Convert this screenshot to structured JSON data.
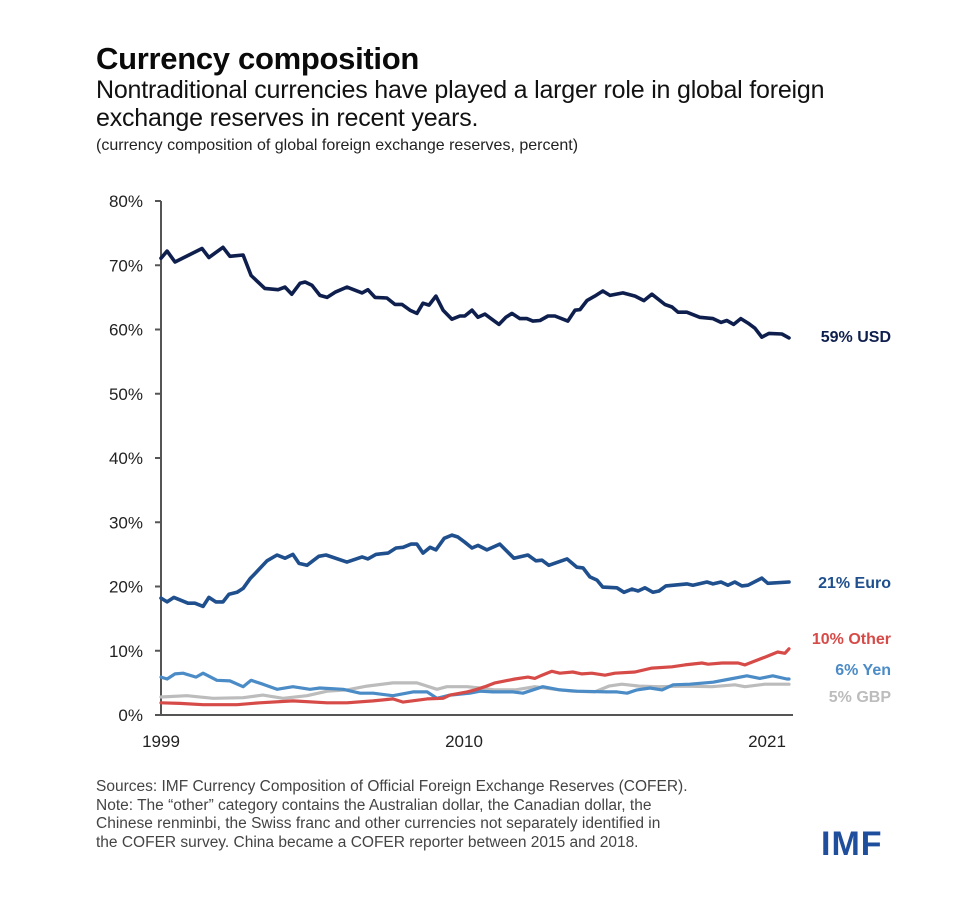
{
  "header": {
    "title": "Currency composition",
    "subtitle": "Nontraditional currencies have played a larger role in global foreign exchange reserves in recent years.",
    "units_note": "(currency composition of global foreign exchange reserves, percent)"
  },
  "footer": {
    "lines": [
      "Sources: IMF Currency Composition of Official Foreign Exchange Reserves (COFER).",
      "Note: The “other” category contains the Australian dollar, the Canadian dollar, the",
      "Chinese renminbi, the Swiss franc and other currencies not separately identified in",
      "the COFER survey. China became a COFER reporter between 2015 and 2018."
    ],
    "logo": "IMF"
  },
  "colors": {
    "usd": "#0f1f4d",
    "euro": "#1f4f8d",
    "other": "#d64b48",
    "yen": "#4b8bc6",
    "gbp": "#bcbcbc",
    "logo": "#1f4e9c",
    "axis": "#555555"
  },
  "chart_data": {
    "type": "line",
    "title": "Currency composition",
    "subtitle": "Nontraditional currencies have played a larger role in global foreign exchange reserves in recent years.",
    "xlabel": "",
    "ylabel": "(currency composition of global foreign exchange reserves, percent)",
    "xlim": [
      1999,
      2021.85
    ],
    "ylim": [
      0,
      80
    ],
    "x_ticks": [
      1999,
      2010,
      2021
    ],
    "x_tick_labels": [
      "1999",
      "2010",
      "2021"
    ],
    "y_ticks": [
      0,
      10,
      20,
      30,
      40,
      50,
      60,
      70,
      80
    ],
    "y_tick_labels": [
      "0%",
      "10%",
      "20%",
      "30%",
      "40%",
      "50%",
      "60%",
      "70%",
      "80%"
    ],
    "grid": false,
    "legend": "end-of-line labels (right)",
    "series": [
      {
        "name": "USD",
        "end_label": "59% USD",
        "color_key": "usd",
        "points": [
          [
            1999.0,
            71.1
          ],
          [
            1999.22,
            72.2
          ],
          [
            1999.51,
            70.5
          ],
          [
            2000.49,
            72.6
          ],
          [
            2000.74,
            71.2
          ],
          [
            2001.25,
            72.8
          ],
          [
            2001.5,
            71.4
          ],
          [
            2001.98,
            71.6
          ],
          [
            2002.27,
            68.4
          ],
          [
            2002.77,
            66.4
          ],
          [
            2003.25,
            66.2
          ],
          [
            2003.5,
            66.6
          ],
          [
            2003.75,
            65.5
          ],
          [
            2004.05,
            67.2
          ],
          [
            2004.23,
            67.4
          ],
          [
            2004.48,
            66.9
          ],
          [
            2004.77,
            65.3
          ],
          [
            2005.03,
            65.0
          ],
          [
            2005.32,
            65.8
          ],
          [
            2005.75,
            66.6
          ],
          [
            2006.3,
            65.7
          ],
          [
            2006.51,
            66.2
          ],
          [
            2006.77,
            65.0
          ],
          [
            2007.2,
            64.9
          ],
          [
            2007.49,
            63.9
          ],
          [
            2007.75,
            63.9
          ],
          [
            2008.04,
            63.0
          ],
          [
            2008.29,
            62.5
          ],
          [
            2008.51,
            64.1
          ],
          [
            2008.73,
            63.8
          ],
          [
            2008.98,
            65.2
          ],
          [
            2009.24,
            63.0
          ],
          [
            2009.56,
            61.6
          ],
          [
            2009.85,
            62.1
          ],
          [
            2010.03,
            62.1
          ],
          [
            2010.29,
            63.0
          ],
          [
            2010.51,
            61.9
          ],
          [
            2010.76,
            62.4
          ],
          [
            2011.01,
            61.6
          ],
          [
            2011.27,
            60.8
          ],
          [
            2011.52,
            61.9
          ],
          [
            2011.74,
            62.5
          ],
          [
            2012.03,
            61.7
          ],
          [
            2012.28,
            61.7
          ],
          [
            2012.5,
            61.3
          ],
          [
            2012.76,
            61.4
          ],
          [
            2013.05,
            62.1
          ],
          [
            2013.3,
            62.1
          ],
          [
            2013.77,
            61.3
          ],
          [
            2014.03,
            63.0
          ],
          [
            2014.21,
            63.1
          ],
          [
            2014.46,
            64.5
          ],
          [
            2014.75,
            65.2
          ],
          [
            2015.04,
            66.0
          ],
          [
            2015.3,
            65.3
          ],
          [
            2015.77,
            65.7
          ],
          [
            2016.21,
            65.2
          ],
          [
            2016.53,
            64.5
          ],
          [
            2016.82,
            65.5
          ],
          [
            2017.29,
            63.9
          ],
          [
            2017.55,
            63.5
          ],
          [
            2017.77,
            62.7
          ],
          [
            2018.09,
            62.7
          ],
          [
            2018.56,
            61.9
          ],
          [
            2019.04,
            61.7
          ],
          [
            2019.33,
            61.1
          ],
          [
            2019.54,
            61.4
          ],
          [
            2019.79,
            60.8
          ],
          [
            2020.05,
            61.7
          ],
          [
            2020.31,
            61.0
          ],
          [
            2020.56,
            60.2
          ],
          [
            2020.81,
            58.8
          ],
          [
            2021.07,
            59.4
          ],
          [
            2021.54,
            59.3
          ],
          [
            2021.8,
            58.7
          ]
        ]
      },
      {
        "name": "Euro",
        "end_label": "21% Euro",
        "color_key": "euro",
        "points": [
          [
            1999.0,
            18.2
          ],
          [
            1999.22,
            17.6
          ],
          [
            1999.47,
            18.3
          ],
          [
            1999.98,
            17.4
          ],
          [
            2000.23,
            17.4
          ],
          [
            2000.53,
            16.9
          ],
          [
            2000.74,
            18.3
          ],
          [
            2000.99,
            17.6
          ],
          [
            2001.25,
            17.6
          ],
          [
            2001.47,
            18.8
          ],
          [
            2001.76,
            19.1
          ],
          [
            2001.98,
            19.7
          ],
          [
            2002.23,
            21.2
          ],
          [
            2002.52,
            22.5
          ],
          [
            2002.85,
            24.0
          ],
          [
            2003.21,
            24.9
          ],
          [
            2003.5,
            24.4
          ],
          [
            2003.79,
            25.0
          ],
          [
            2004.01,
            23.6
          ],
          [
            2004.3,
            23.3
          ],
          [
            2004.73,
            24.7
          ],
          [
            2004.99,
            24.9
          ],
          [
            2005.75,
            23.8
          ],
          [
            2006.3,
            24.6
          ],
          [
            2006.51,
            24.3
          ],
          [
            2006.8,
            25.0
          ],
          [
            2007.24,
            25.2
          ],
          [
            2007.53,
            26.0
          ],
          [
            2007.79,
            26.1
          ],
          [
            2008.08,
            26.6
          ],
          [
            2008.29,
            26.6
          ],
          [
            2008.51,
            25.2
          ],
          [
            2008.77,
            26.1
          ],
          [
            2008.98,
            25.7
          ],
          [
            2009.28,
            27.5
          ],
          [
            2009.56,
            28.0
          ],
          [
            2009.78,
            27.7
          ],
          [
            2010.03,
            26.9
          ],
          [
            2010.29,
            26.0
          ],
          [
            2010.51,
            26.4
          ],
          [
            2010.83,
            25.7
          ],
          [
            2011.3,
            26.6
          ],
          [
            2011.81,
            24.4
          ],
          [
            2012.32,
            24.9
          ],
          [
            2012.61,
            24.0
          ],
          [
            2012.83,
            24.1
          ],
          [
            2013.08,
            23.3
          ],
          [
            2013.74,
            24.3
          ],
          [
            2014.1,
            23.0
          ],
          [
            2014.32,
            22.9
          ],
          [
            2014.57,
            21.5
          ],
          [
            2014.83,
            21.0
          ],
          [
            2015.04,
            19.9
          ],
          [
            2015.55,
            19.8
          ],
          [
            2015.81,
            19.1
          ],
          [
            2016.1,
            19.6
          ],
          [
            2016.32,
            19.3
          ],
          [
            2016.57,
            19.8
          ],
          [
            2016.86,
            19.1
          ],
          [
            2017.08,
            19.3
          ],
          [
            2017.33,
            20.1
          ],
          [
            2018.09,
            20.4
          ],
          [
            2018.31,
            20.2
          ],
          [
            2018.82,
            20.7
          ],
          [
            2019.04,
            20.4
          ],
          [
            2019.33,
            20.7
          ],
          [
            2019.58,
            20.2
          ],
          [
            2019.83,
            20.7
          ],
          [
            2020.09,
            20.1
          ],
          [
            2020.31,
            20.2
          ],
          [
            2020.81,
            21.3
          ],
          [
            2021.03,
            20.5
          ],
          [
            2021.8,
            20.7
          ]
        ]
      },
      {
        "name": "Other",
        "end_label": "10% Other",
        "color_key": "other",
        "points": [
          [
            1999.0,
            1.9
          ],
          [
            1999.69,
            1.8
          ],
          [
            2000.53,
            1.6
          ],
          [
            2001.76,
            1.6
          ],
          [
            2002.59,
            1.9
          ],
          [
            2003.79,
            2.2
          ],
          [
            2005.03,
            1.9
          ],
          [
            2005.75,
            1.9
          ],
          [
            2006.7,
            2.2
          ],
          [
            2007.42,
            2.5
          ],
          [
            2007.79,
            2.0
          ],
          [
            2008.66,
            2.5
          ],
          [
            2009.24,
            2.6
          ],
          [
            2009.49,
            3.1
          ],
          [
            2010.11,
            3.6
          ],
          [
            2010.4,
            3.9
          ],
          [
            2010.76,
            4.4
          ],
          [
            2011.12,
            5.0
          ],
          [
            2011.85,
            5.6
          ],
          [
            2012.32,
            5.9
          ],
          [
            2012.57,
            5.7
          ],
          [
            2012.83,
            6.2
          ],
          [
            2013.19,
            6.8
          ],
          [
            2013.48,
            6.5
          ],
          [
            2013.95,
            6.7
          ],
          [
            2014.28,
            6.4
          ],
          [
            2014.64,
            6.5
          ],
          [
            2015.12,
            6.2
          ],
          [
            2015.48,
            6.5
          ],
          [
            2016.21,
            6.7
          ],
          [
            2016.82,
            7.3
          ],
          [
            2017.55,
            7.5
          ],
          [
            2018.02,
            7.8
          ],
          [
            2018.64,
            8.1
          ],
          [
            2018.86,
            7.9
          ],
          [
            2019.37,
            8.1
          ],
          [
            2019.95,
            8.1
          ],
          [
            2020.2,
            7.8
          ],
          [
            2020.56,
            8.4
          ],
          [
            2020.92,
            9.0
          ],
          [
            2021.39,
            9.8
          ],
          [
            2021.65,
            9.6
          ],
          [
            2021.8,
            10.3
          ]
        ]
      },
      {
        "name": "Yen",
        "end_label": "6% Yen",
        "color_key": "yen",
        "points": [
          [
            1999.0,
            5.9
          ],
          [
            1999.22,
            5.6
          ],
          [
            1999.51,
            6.4
          ],
          [
            1999.8,
            6.5
          ],
          [
            2000.27,
            5.9
          ],
          [
            2000.53,
            6.5
          ],
          [
            2001.03,
            5.4
          ],
          [
            2001.5,
            5.3
          ],
          [
            2001.98,
            4.4
          ],
          [
            2002.27,
            5.4
          ],
          [
            2002.7,
            4.8
          ],
          [
            2003.21,
            4.0
          ],
          [
            2003.79,
            4.4
          ],
          [
            2004.41,
            4.0
          ],
          [
            2004.77,
            4.2
          ],
          [
            2005.61,
            4.0
          ],
          [
            2006.23,
            3.4
          ],
          [
            2006.7,
            3.4
          ],
          [
            2007.42,
            3.0
          ],
          [
            2008.15,
            3.6
          ],
          [
            2008.66,
            3.6
          ],
          [
            2009.02,
            2.6
          ],
          [
            2009.49,
            3.1
          ],
          [
            2010.21,
            3.4
          ],
          [
            2010.58,
            3.7
          ],
          [
            2011.05,
            3.6
          ],
          [
            2011.78,
            3.6
          ],
          [
            2012.14,
            3.4
          ],
          [
            2012.86,
            4.4
          ],
          [
            2013.48,
            3.9
          ],
          [
            2014.1,
            3.7
          ],
          [
            2015.19,
            3.6
          ],
          [
            2015.55,
            3.6
          ],
          [
            2015.92,
            3.4
          ],
          [
            2016.28,
            3.9
          ],
          [
            2016.75,
            4.2
          ],
          [
            2017.19,
            3.9
          ],
          [
            2017.59,
            4.7
          ],
          [
            2018.2,
            4.8
          ],
          [
            2019.04,
            5.1
          ],
          [
            2019.66,
            5.6
          ],
          [
            2020.27,
            6.1
          ],
          [
            2020.74,
            5.7
          ],
          [
            2021.21,
            6.1
          ],
          [
            2021.72,
            5.6
          ],
          [
            2021.8,
            5.6
          ]
        ]
      },
      {
        "name": "GBP",
        "end_label": "5% GBP",
        "color_key": "gbp",
        "points": [
          [
            1999.0,
            2.8
          ],
          [
            1999.94,
            3.0
          ],
          [
            2000.89,
            2.6
          ],
          [
            2001.98,
            2.7
          ],
          [
            2002.7,
            3.1
          ],
          [
            2003.43,
            2.6
          ],
          [
            2004.3,
            3.0
          ],
          [
            2005.03,
            3.7
          ],
          [
            2005.75,
            3.9
          ],
          [
            2006.48,
            4.5
          ],
          [
            2007.42,
            5.0
          ],
          [
            2008.29,
            5.0
          ],
          [
            2009.02,
            4.0
          ],
          [
            2009.38,
            4.4
          ],
          [
            2010.11,
            4.4
          ],
          [
            2010.58,
            4.2
          ],
          [
            2011.12,
            3.9
          ],
          [
            2011.85,
            3.9
          ],
          [
            2012.57,
            4.4
          ],
          [
            2013.3,
            4.0
          ],
          [
            2013.92,
            3.7
          ],
          [
            2014.75,
            3.6
          ],
          [
            2015.26,
            4.5
          ],
          [
            2015.73,
            4.8
          ],
          [
            2016.35,
            4.5
          ],
          [
            2017.08,
            4.4
          ],
          [
            2018.02,
            4.5
          ],
          [
            2019.0,
            4.4
          ],
          [
            2019.83,
            4.7
          ],
          [
            2020.2,
            4.4
          ],
          [
            2020.92,
            4.8
          ],
          [
            2021.8,
            4.8
          ]
        ]
      }
    ]
  }
}
